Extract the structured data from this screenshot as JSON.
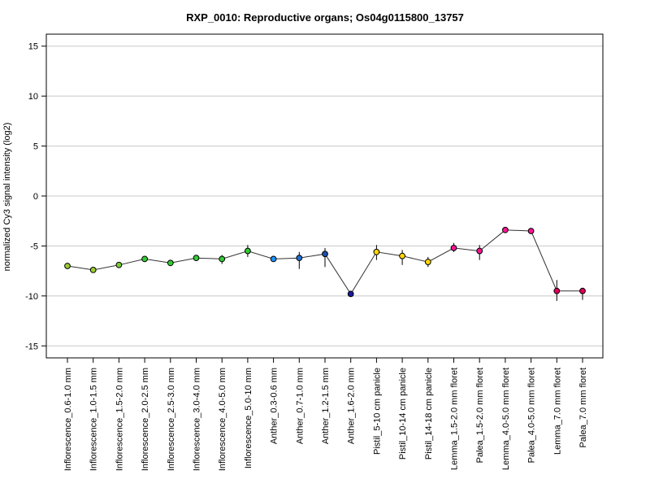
{
  "chart_data": {
    "type": "line",
    "title": "RXP_0010: Reproductive organs; Os04g0115800_13757",
    "ylabel": "normalized Cy3 signal intensity (log2)",
    "xlabel": "",
    "ylim": [
      -16.2,
      16.2
    ],
    "yticks": [
      -15,
      -10,
      -5,
      0,
      5,
      10,
      15
    ],
    "grid": "horizontal",
    "categories": [
      "Inflorescence_0.6-1.0 mm",
      "Inflorescence_1.0-1.5 mm",
      "Inflorescence_1.5-2.0 mm",
      "Inflorescence_2.0-2.5 mm",
      "Inflorescence_2.5-3.0 mm",
      "Inflorescence_3.0-4.0 mm",
      "Inflorescence_4.0-5.0 mm",
      "Inflorescence_5.0-10 mm",
      "Anther_0.3-0.6 mm",
      "Anther_0.7-1.0 mm",
      "Anther_1.2-1.5 mm",
      "Anther_1.6-2.0 mm",
      "Pistil_5-10 cm panicle",
      "Pistil_10-14 cm panicle",
      "Pistil_14-18 cm panicle",
      "Lemma_1.5-2.0 mm floret",
      "Palea_1.5-2.0 mm floret",
      "Lemma_4.0-5.0 mm floret",
      "Palea_4.0-5.0 mm floret",
      "Lemma_7.0 mm floret",
      "Palea_7.0 mm floret"
    ],
    "values": [
      -7.0,
      -7.4,
      -6.9,
      -6.3,
      -6.7,
      -6.2,
      -6.3,
      -5.5,
      -6.3,
      -6.2,
      -5.8,
      -9.8,
      -5.6,
      -6.0,
      -6.6,
      -5.2,
      -5.5,
      -3.4,
      -3.5,
      -9.5,
      -9.5
    ],
    "error_low": [
      -7.3,
      -7.6,
      -7.2,
      -6.6,
      -6.9,
      -6.4,
      -6.8,
      -6.1,
      -6.5,
      -7.3,
      -7.1,
      -9.9,
      -6.4,
      -6.9,
      -7.1,
      -5.6,
      -6.4,
      -3.5,
      -3.6,
      -10.5,
      -10.4
    ],
    "error_high": [
      -6.7,
      -7.2,
      -6.6,
      -6.1,
      -6.5,
      -6.0,
      -5.9,
      -4.9,
      -6.1,
      -5.6,
      -5.2,
      -9.6,
      -4.9,
      -5.4,
      -6.1,
      -4.7,
      -4.9,
      -3.3,
      -3.4,
      -8.4,
      -9.3
    ],
    "colors": [
      "#9acd32",
      "#9acd32",
      "#7ccd32",
      "#32cd32",
      "#32cd32",
      "#32cd32",
      "#32cd32",
      "#32cd32",
      "#1e90ff",
      "#1e6fd0",
      "#1e4fb0",
      "#1a1aa0",
      "#ffd700",
      "#ffd700",
      "#ffd700",
      "#ff1493",
      "#ff1493",
      "#ff1493",
      "#ff1493",
      "#e0005a",
      "#e0005a"
    ]
  }
}
